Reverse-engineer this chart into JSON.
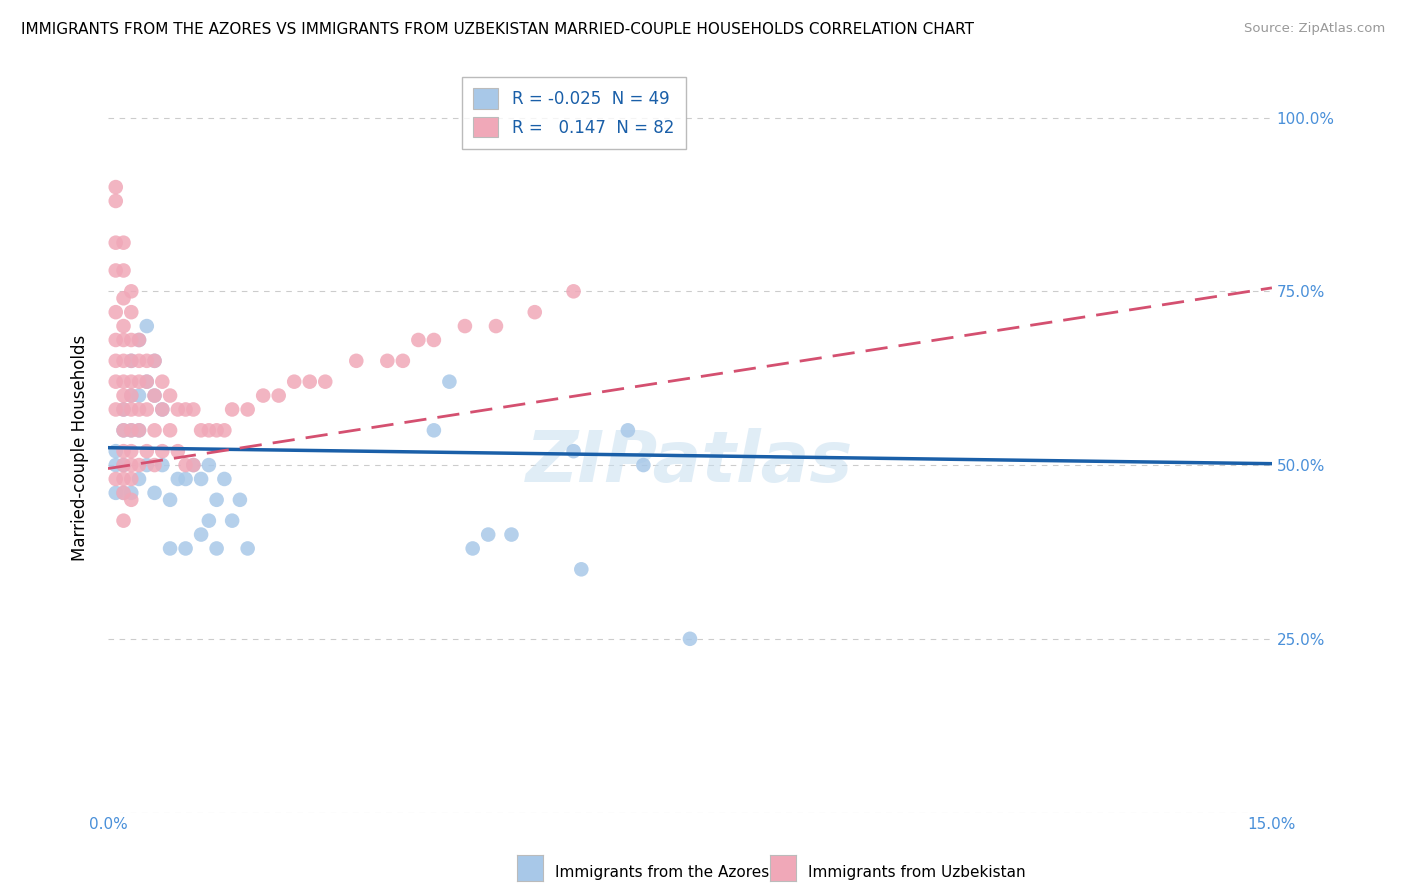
{
  "title": "IMMIGRANTS FROM THE AZORES VS IMMIGRANTS FROM UZBEKISTAN MARRIED-COUPLE HOUSEHOLDS CORRELATION CHART",
  "source": "Source: ZipAtlas.com",
  "ylabel": "Married-couple Households",
  "xlabel_azores": "Immigrants from the Azores",
  "xlabel_uzbekistan": "Immigrants from Uzbekistan",
  "xlim": [
    0.0,
    0.15
  ],
  "ylim": [
    0.0,
    1.05
  ],
  "yticks": [
    0.0,
    0.25,
    0.5,
    0.75,
    1.0
  ],
  "ytick_labels": [
    "",
    "25.0%",
    "50.0%",
    "75.0%",
    "100.0%"
  ],
  "xticks": [
    0.0,
    0.015,
    0.03,
    0.045,
    0.06,
    0.075,
    0.09,
    0.105,
    0.12,
    0.135,
    0.15
  ],
  "xtick_labels": [
    "0.0%",
    "",
    "",
    "",
    "",
    "",
    "",
    "",
    "",
    "",
    "15.0%"
  ],
  "R_azores": -0.025,
  "N_azores": 49,
  "R_uzbekistan": 0.147,
  "N_uzbekistan": 82,
  "color_azores": "#a8c8e8",
  "color_uzbekistan": "#f0a8b8",
  "line_color_azores": "#1a5fa8",
  "line_color_uzbekistan": "#d45070",
  "watermark": "ZIPatlas",
  "azores_x": [
    0.001,
    0.001,
    0.001,
    0.002,
    0.002,
    0.002,
    0.002,
    0.003,
    0.003,
    0.003,
    0.003,
    0.004,
    0.004,
    0.004,
    0.004,
    0.005,
    0.005,
    0.005,
    0.006,
    0.006,
    0.006,
    0.007,
    0.007,
    0.008,
    0.008,
    0.009,
    0.01,
    0.01,
    0.011,
    0.012,
    0.012,
    0.013,
    0.013,
    0.014,
    0.014,
    0.015,
    0.016,
    0.017,
    0.018,
    0.042,
    0.044,
    0.047,
    0.049,
    0.052,
    0.06,
    0.061,
    0.067,
    0.069,
    0.075
  ],
  "azores_y": [
    0.52,
    0.5,
    0.46,
    0.58,
    0.55,
    0.5,
    0.46,
    0.65,
    0.6,
    0.55,
    0.46,
    0.68,
    0.6,
    0.55,
    0.48,
    0.7,
    0.62,
    0.5,
    0.65,
    0.6,
    0.46,
    0.58,
    0.5,
    0.45,
    0.38,
    0.48,
    0.48,
    0.38,
    0.5,
    0.48,
    0.4,
    0.5,
    0.42,
    0.45,
    0.38,
    0.48,
    0.42,
    0.45,
    0.38,
    0.55,
    0.62,
    0.38,
    0.4,
    0.4,
    0.52,
    0.35,
    0.55,
    0.5,
    0.25
  ],
  "uzbekistan_x": [
    0.001,
    0.001,
    0.001,
    0.001,
    0.001,
    0.001,
    0.001,
    0.001,
    0.001,
    0.001,
    0.002,
    0.002,
    0.002,
    0.002,
    0.002,
    0.002,
    0.002,
    0.002,
    0.002,
    0.002,
    0.002,
    0.002,
    0.002,
    0.002,
    0.002,
    0.003,
    0.003,
    0.003,
    0.003,
    0.003,
    0.003,
    0.003,
    0.003,
    0.003,
    0.003,
    0.003,
    0.003,
    0.004,
    0.004,
    0.004,
    0.004,
    0.004,
    0.004,
    0.005,
    0.005,
    0.005,
    0.005,
    0.006,
    0.006,
    0.006,
    0.006,
    0.007,
    0.007,
    0.007,
    0.008,
    0.008,
    0.009,
    0.009,
    0.01,
    0.01,
    0.011,
    0.011,
    0.012,
    0.013,
    0.014,
    0.015,
    0.016,
    0.018,
    0.02,
    0.022,
    0.024,
    0.026,
    0.028,
    0.032,
    0.036,
    0.038,
    0.04,
    0.042,
    0.046,
    0.05,
    0.055,
    0.06
  ],
  "uzbekistan_y": [
    0.9,
    0.88,
    0.82,
    0.78,
    0.72,
    0.68,
    0.65,
    0.62,
    0.58,
    0.48,
    0.82,
    0.78,
    0.74,
    0.7,
    0.68,
    0.65,
    0.62,
    0.6,
    0.58,
    0.55,
    0.52,
    0.5,
    0.48,
    0.46,
    0.42,
    0.75,
    0.72,
    0.68,
    0.65,
    0.62,
    0.6,
    0.58,
    0.55,
    0.52,
    0.5,
    0.48,
    0.45,
    0.68,
    0.65,
    0.62,
    0.58,
    0.55,
    0.5,
    0.65,
    0.62,
    0.58,
    0.52,
    0.65,
    0.6,
    0.55,
    0.5,
    0.62,
    0.58,
    0.52,
    0.6,
    0.55,
    0.58,
    0.52,
    0.58,
    0.5,
    0.58,
    0.5,
    0.55,
    0.55,
    0.55,
    0.55,
    0.58,
    0.58,
    0.6,
    0.6,
    0.62,
    0.62,
    0.62,
    0.65,
    0.65,
    0.65,
    0.68,
    0.68,
    0.7,
    0.7,
    0.72,
    0.75
  ]
}
